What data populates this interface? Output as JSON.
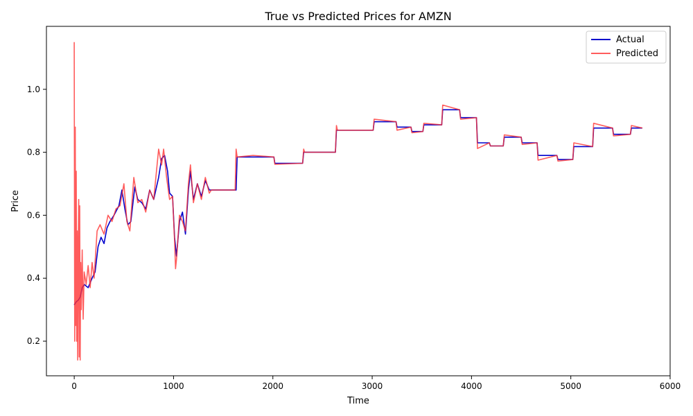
{
  "chart_data": {
    "type": "line",
    "title": "True vs Predicted Prices for AMZN",
    "xlabel": "Time",
    "ylabel": "Price",
    "xlim": [
      -280,
      6000
    ],
    "ylim": [
      0.09,
      1.2
    ],
    "x_ticks": [
      0,
      1000,
      2000,
      3000,
      4000,
      5000,
      6000
    ],
    "y_ticks": [
      0.2,
      0.4,
      0.6,
      0.8,
      1.0
    ],
    "y_tick_labels": [
      "0.2",
      "0.4",
      "0.6",
      "0.8",
      "1.0"
    ],
    "grid": false,
    "legend_position": "top-right",
    "series": [
      {
        "name": "Actual",
        "color": "#0000cc",
        "x": [
          0,
          20,
          40,
          60,
          80,
          100,
          140,
          180,
          210,
          240,
          270,
          300,
          330,
          360,
          400,
          450,
          480,
          510,
          540,
          570,
          610,
          640,
          680,
          720,
          760,
          800,
          850,
          880,
          910,
          940,
          960,
          990,
          1010,
          1030,
          1060,
          1090,
          1120,
          1150,
          1170,
          1200,
          1240,
          1280,
          1320,
          1360,
          1380,
          1630,
          1640,
          2010,
          2020,
          2300,
          2310,
          2630,
          2640,
          3010,
          3020,
          3240,
          3250,
          3390,
          3400,
          3510,
          3520,
          3700,
          3710,
          3880,
          3890,
          4050,
          4060,
          4180,
          4190,
          4320,
          4330,
          4500,
          4510,
          4660,
          4670,
          4860,
          4870,
          5020,
          5030,
          5220,
          5230,
          5420,
          5430,
          5600,
          5610,
          5720
        ],
        "values": [
          0.315,
          0.325,
          0.33,
          0.34,
          0.37,
          0.38,
          0.37,
          0.4,
          0.42,
          0.5,
          0.53,
          0.51,
          0.56,
          0.58,
          0.6,
          0.63,
          0.68,
          0.62,
          0.57,
          0.58,
          0.69,
          0.65,
          0.64,
          0.62,
          0.68,
          0.65,
          0.72,
          0.78,
          0.79,
          0.74,
          0.67,
          0.66,
          0.53,
          0.47,
          0.58,
          0.61,
          0.54,
          0.68,
          0.74,
          0.65,
          0.7,
          0.66,
          0.71,
          0.68,
          0.68,
          0.68,
          0.785,
          0.785,
          0.765,
          0.765,
          0.8,
          0.8,
          0.87,
          0.87,
          0.897,
          0.897,
          0.88,
          0.88,
          0.866,
          0.866,
          0.887,
          0.887,
          0.935,
          0.935,
          0.91,
          0.91,
          0.83,
          0.83,
          0.82,
          0.82,
          0.848,
          0.848,
          0.83,
          0.83,
          0.79,
          0.79,
          0.777,
          0.777,
          0.818,
          0.818,
          0.877,
          0.877,
          0.857,
          0.857,
          0.877,
          0.877
        ]
      },
      {
        "name": "Predicted",
        "color": "#ff3333",
        "x": [
          0,
          5,
          10,
          15,
          20,
          25,
          30,
          35,
          40,
          45,
          50,
          55,
          60,
          65,
          70,
          80,
          90,
          100,
          120,
          140,
          160,
          180,
          200,
          230,
          260,
          300,
          340,
          380,
          420,
          460,
          500,
          530,
          560,
          600,
          640,
          680,
          720,
          760,
          800,
          850,
          880,
          900,
          930,
          960,
          990,
          1010,
          1020,
          1030,
          1060,
          1090,
          1120,
          1150,
          1170,
          1200,
          1240,
          1280,
          1320,
          1360,
          1380,
          1620,
          1630,
          1640,
          1800,
          2010,
          2020,
          2300,
          2310,
          2320,
          2630,
          2640,
          2650,
          3010,
          3020,
          3240,
          3250,
          3390,
          3400,
          3510,
          3520,
          3700,
          3710,
          3880,
          3890,
          4050,
          4060,
          4180,
          4190,
          4320,
          4330,
          4500,
          4510,
          4660,
          4670,
          4860,
          4870,
          5020,
          5030,
          5220,
          5230,
          5420,
          5430,
          5600,
          5610,
          5720
        ],
        "values": [
          1.15,
          0.2,
          0.88,
          0.25,
          0.74,
          0.2,
          0.55,
          0.14,
          0.5,
          0.65,
          0.15,
          0.63,
          0.14,
          0.45,
          0.3,
          0.49,
          0.27,
          0.42,
          0.38,
          0.44,
          0.37,
          0.45,
          0.4,
          0.55,
          0.57,
          0.54,
          0.6,
          0.58,
          0.62,
          0.63,
          0.7,
          0.58,
          0.55,
          0.72,
          0.64,
          0.65,
          0.61,
          0.68,
          0.65,
          0.81,
          0.76,
          0.81,
          0.72,
          0.65,
          0.66,
          0.52,
          0.43,
          0.46,
          0.6,
          0.58,
          0.55,
          0.7,
          0.76,
          0.64,
          0.7,
          0.65,
          0.72,
          0.67,
          0.68,
          0.68,
          0.81,
          0.785,
          0.79,
          0.785,
          0.762,
          0.765,
          0.81,
          0.8,
          0.8,
          0.885,
          0.87,
          0.87,
          0.905,
          0.897,
          0.87,
          0.88,
          0.862,
          0.866,
          0.892,
          0.887,
          0.95,
          0.935,
          0.905,
          0.91,
          0.812,
          0.83,
          0.82,
          0.82,
          0.855,
          0.848,
          0.825,
          0.83,
          0.775,
          0.79,
          0.772,
          0.777,
          0.83,
          0.818,
          0.892,
          0.877,
          0.852,
          0.857,
          0.885,
          0.877
        ]
      }
    ]
  }
}
